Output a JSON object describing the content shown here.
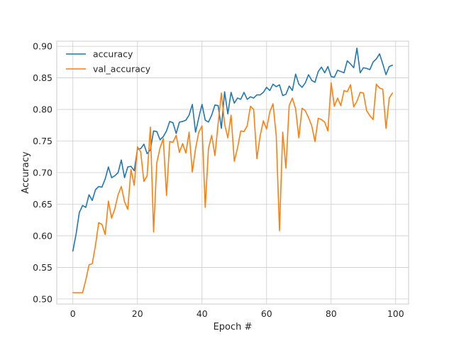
{
  "chart_data": {
    "type": "line",
    "title": "",
    "xlabel": "Epoch #",
    "ylabel": "Accuracy",
    "xlim": [
      -5,
      104
    ],
    "ylim": [
      0.492,
      0.908
    ],
    "xticks": [
      0,
      20,
      40,
      60,
      80,
      100
    ],
    "yticks": [
      0.5,
      0.55,
      0.6,
      0.65,
      0.7,
      0.75,
      0.8,
      0.85,
      0.9
    ],
    "grid": true,
    "legend": "top-left",
    "series": [
      {
        "name": "accuracy",
        "color": "#1f77b4",
        "x": [
          0,
          1,
          2,
          3,
          4,
          5,
          6,
          7,
          8,
          9,
          10,
          11,
          12,
          13,
          14,
          15,
          16,
          17,
          18,
          19,
          20,
          21,
          22,
          23,
          24,
          25,
          26,
          27,
          28,
          29,
          30,
          31,
          32,
          33,
          34,
          35,
          36,
          37,
          38,
          39,
          40,
          41,
          42,
          43,
          44,
          45,
          46,
          47,
          48,
          49,
          50,
          51,
          52,
          53,
          54,
          55,
          56,
          57,
          58,
          59,
          60,
          61,
          62,
          63,
          64,
          65,
          66,
          67,
          68,
          69,
          70,
          71,
          72,
          73,
          74,
          75,
          76,
          77,
          78,
          79,
          80,
          81,
          82,
          83,
          84,
          85,
          86,
          87,
          88,
          89,
          90,
          91,
          92,
          93,
          94,
          95,
          96,
          97,
          98,
          99
        ],
        "values": [
          0.576,
          0.603,
          0.637,
          0.648,
          0.645,
          0.665,
          0.656,
          0.673,
          0.678,
          0.677,
          0.69,
          0.709,
          0.692,
          0.695,
          0.7,
          0.72,
          0.692,
          0.709,
          0.71,
          0.703,
          0.737,
          0.738,
          0.745,
          0.73,
          0.736,
          0.766,
          0.765,
          0.752,
          0.757,
          0.766,
          0.781,
          0.779,
          0.762,
          0.78,
          0.781,
          0.783,
          0.791,
          0.808,
          0.764,
          0.787,
          0.808,
          0.783,
          0.78,
          0.791,
          0.807,
          0.806,
          0.77,
          0.828,
          0.793,
          0.827,
          0.81,
          0.818,
          0.816,
          0.827,
          0.816,
          0.82,
          0.818,
          0.823,
          0.823,
          0.827,
          0.835,
          0.83,
          0.84,
          0.836,
          0.839,
          0.822,
          0.824,
          0.837,
          0.83,
          0.856,
          0.84,
          0.835,
          0.842,
          0.855,
          0.846,
          0.843,
          0.86,
          0.867,
          0.858,
          0.868,
          0.852,
          0.851,
          0.862,
          0.86,
          0.858,
          0.877,
          0.872,
          0.866,
          0.897,
          0.858,
          0.866,
          0.865,
          0.863,
          0.875,
          0.88,
          0.888,
          0.872,
          0.855,
          0.868,
          0.87
        ]
      },
      {
        "name": "val_accuracy",
        "color": "#ff7f0e",
        "x": [
          0,
          1,
          2,
          3,
          4,
          5,
          6,
          7,
          8,
          9,
          10,
          11,
          12,
          13,
          14,
          15,
          16,
          17,
          18,
          19,
          20,
          21,
          22,
          23,
          24,
          25,
          26,
          27,
          28,
          29,
          30,
          31,
          32,
          33,
          34,
          35,
          36,
          37,
          38,
          39,
          40,
          41,
          42,
          43,
          44,
          45,
          46,
          47,
          48,
          49,
          50,
          51,
          52,
          53,
          54,
          55,
          56,
          57,
          58,
          59,
          60,
          61,
          62,
          63,
          64,
          65,
          66,
          67,
          68,
          69,
          70,
          71,
          72,
          73,
          74,
          75,
          76,
          77,
          78,
          79,
          80,
          81,
          82,
          83,
          84,
          85,
          86,
          87,
          88,
          89,
          90,
          91,
          92,
          93,
          94,
          95,
          96,
          97,
          98,
          99
        ],
        "values": [
          0.51,
          0.51,
          0.51,
          0.51,
          0.53,
          0.554,
          0.556,
          0.585,
          0.621,
          0.618,
          0.602,
          0.655,
          0.628,
          0.643,
          0.665,
          0.678,
          0.654,
          0.642,
          0.705,
          0.68,
          0.741,
          0.733,
          0.686,
          0.695,
          0.772,
          0.606,
          0.716,
          0.739,
          0.754,
          0.664,
          0.749,
          0.748,
          0.759,
          0.732,
          0.746,
          0.731,
          0.764,
          0.701,
          0.738,
          0.764,
          0.774,
          0.645,
          0.738,
          0.759,
          0.727,
          0.778,
          0.826,
          0.777,
          0.755,
          0.791,
          0.718,
          0.739,
          0.766,
          0.765,
          0.774,
          0.805,
          0.8,
          0.722,
          0.758,
          0.782,
          0.769,
          0.796,
          0.809,
          0.758,
          0.608,
          0.764,
          0.707,
          0.806,
          0.818,
          0.801,
          0.755,
          0.802,
          0.798,
          0.787,
          0.774,
          0.749,
          0.786,
          0.784,
          0.78,
          0.766,
          0.842,
          0.805,
          0.818,
          0.806,
          0.83,
          0.828,
          0.839,
          0.804,
          0.813,
          0.827,
          0.826,
          0.798,
          0.79,
          0.784,
          0.84,
          0.834,
          0.832,
          0.77,
          0.818,
          0.826
        ]
      }
    ]
  }
}
